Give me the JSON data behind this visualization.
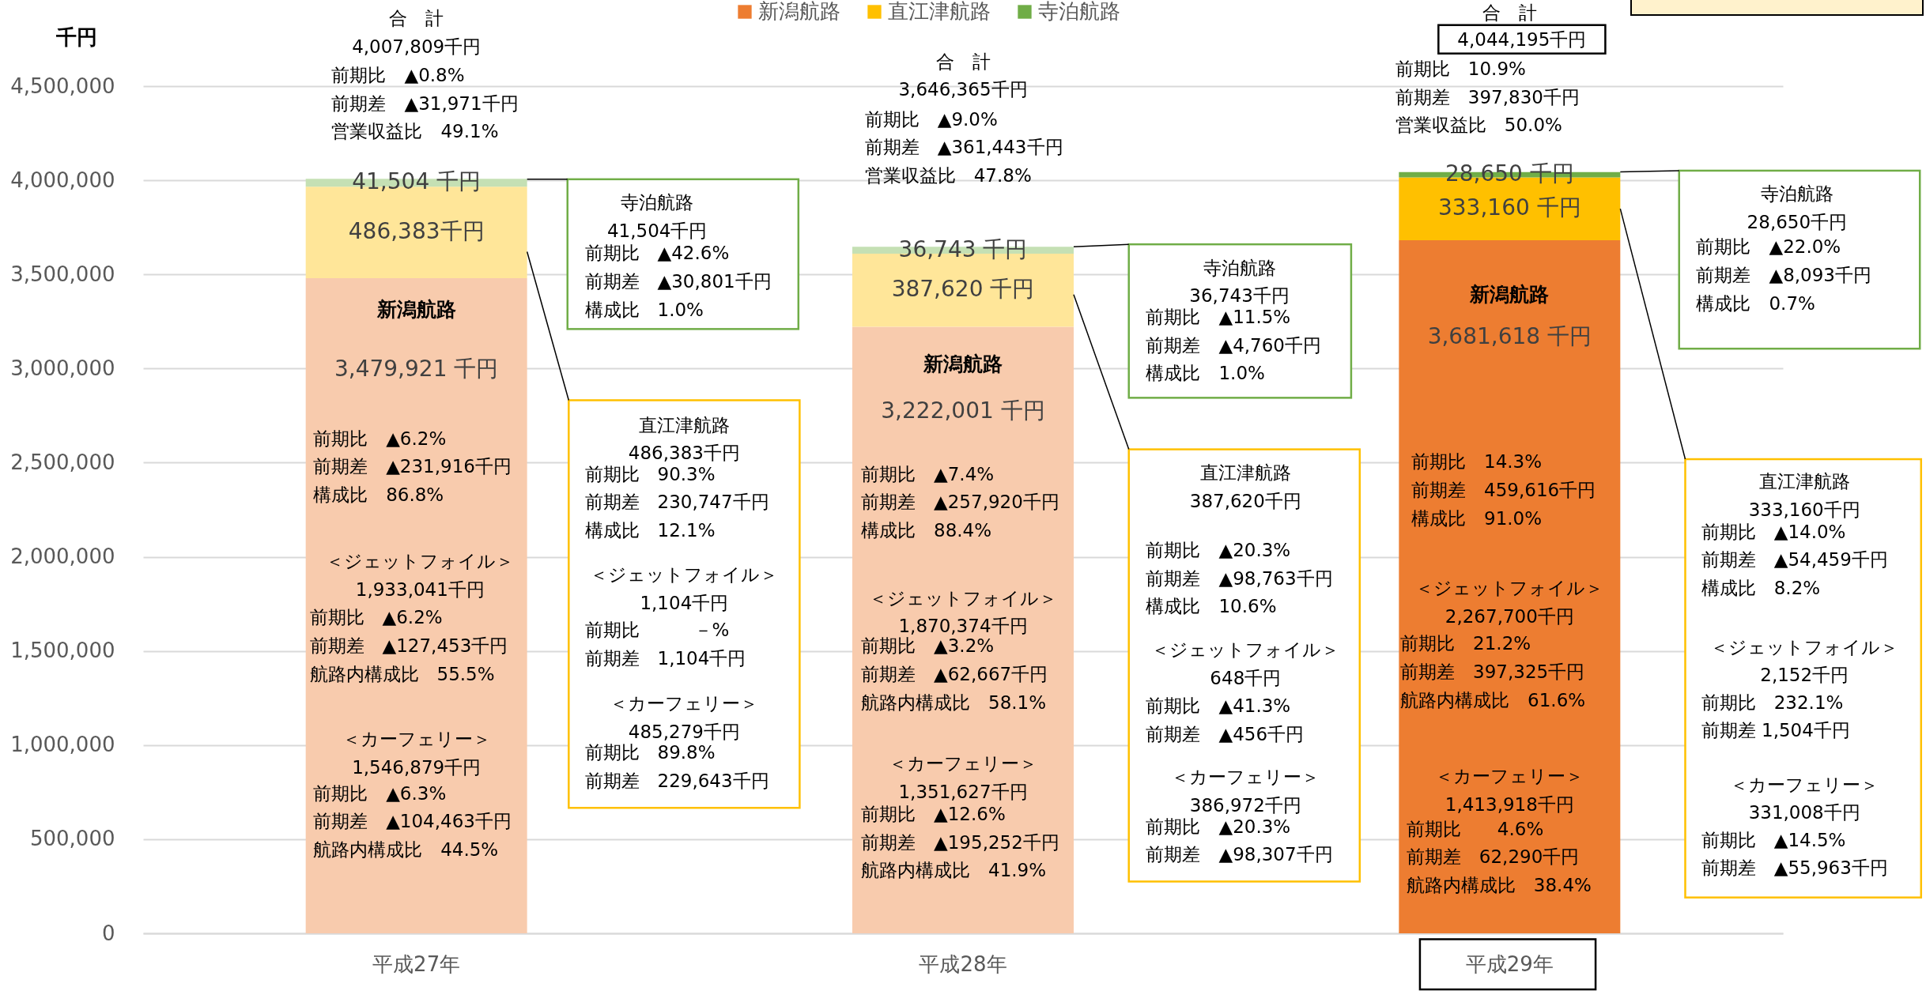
{
  "chart_data": {
    "type": "bar",
    "stacked": true,
    "ylabel": "千円",
    "categories": [
      "平成27年",
      "平成28年",
      "平成29年"
    ],
    "ylim": [
      0,
      4500000
    ],
    "yticks": [
      {
        "value": 0,
        "label": "0"
      },
      {
        "value": 500000,
        "label": "500,000"
      },
      {
        "value": 1000000,
        "label": "1,000,000"
      },
      {
        "value": 1500000,
        "label": "1,500,000"
      },
      {
        "value": 2000000,
        "label": "2,000,000"
      },
      {
        "value": 2500000,
        "label": "2,500,000"
      },
      {
        "value": 3000000,
        "label": "3,000,000"
      },
      {
        "value": 3500000,
        "label": "3,500,000"
      },
      {
        "value": 4000000,
        "label": "4,000,000"
      },
      {
        "value": 4500000,
        "label": "4,500,000"
      }
    ],
    "grid": "y",
    "legend": "top",
    "series": [
      {
        "name": "新潟航路",
        "color": "#ed7d31",
        "colors": [
          "#f8cbad",
          "#f8cbad",
          "#ed7d31"
        ],
        "values": [
          3479921,
          3222001,
          3681618
        ],
        "value_labels": [
          "3,479,921 千円",
          "3,222,001 千円",
          "3,681,618 千円"
        ]
      },
      {
        "name": "直江津航路",
        "color": "#ffc000",
        "colors": [
          "#ffe699",
          "#ffe699",
          "#ffc000"
        ],
        "values": [
          486383,
          387620,
          333160
        ],
        "value_labels": [
          "486,383千円",
          "387,620 千円",
          "333,160 千円"
        ]
      },
      {
        "name": "寺泊航路",
        "color": "#70ad47",
        "colors": [
          "#c5e0b4",
          "#c5e0b4",
          "#70ad47"
        ],
        "values": [
          41504,
          36743,
          28650
        ],
        "value_labels": [
          "41,504 千円",
          "36,743 千円",
          "28,650 千円"
        ]
      }
    ],
    "annotations": [
      "合　計",
      "4,007,809千円",
      "前期比　▲0.8%",
      "前期差　▲31,971千円",
      "営業収益比　49.1%",
      "新潟航路",
      "前期比　▲6.2%",
      "前期差　▲231,916千円",
      "構成比　86.8%",
      "＜ジェットフォイル＞",
      "1,933,041千円",
      "前期比　▲6.2%",
      "前期差　▲127,453千円",
      "航路内構成比　55.5%",
      "＜カーフェリー＞",
      "1,546,879千円",
      "前期比　▲6.3%",
      "前期差　▲104,463千円",
      "航路内構成比　44.5%",
      "寺泊航路",
      "41,504千円",
      "前期比　▲42.6%",
      "前期差　▲30,801千円",
      "構成比　1.0%",
      "直江津航路",
      "486,383千円",
      "前期比　90.3%",
      "前期差　230,747千円",
      "構成比　12.1%",
      "＜ジェットフォイル＞",
      "1,104千円",
      "前期比　　　－%",
      "前期差　1,104千円",
      "＜カーフェリー＞",
      "485,279千円",
      "前期比　89.8%",
      "前期差　229,643千円",
      "合　計",
      "3,646,365千円",
      "前期比　▲9.0%",
      "前期差　▲361,443千円",
      "営業収益比　47.8%",
      "新潟航路",
      "前期比　▲7.4%",
      "前期差　▲257,920千円",
      "構成比　88.4%",
      "＜ジェットフォイル＞",
      "1,870,374千円",
      "前期比　▲3.2%",
      "前期差　▲62,667千円",
      "航路内構成比　58.1%",
      "＜カーフェリー＞",
      "1,351,627千円",
      "前期比　▲12.6%",
      "前期差　▲195,252千円",
      "航路内構成比　41.9%",
      "寺泊航路",
      "36,743千円",
      "前期比　▲11.5%",
      "前期差　▲4,760千円",
      "構成比　1.0%",
      "直江津航路",
      "387,620千円",
      "前期比　▲20.3%",
      "前期差　▲98,763千円",
      "構成比　10.6%",
      "＜ジェットフォイル＞",
      "648千円",
      "前期比　▲41.3%",
      "前期差　▲456千円",
      "＜カーフェリー＞",
      "386,972千円",
      "前期比　▲20.3%",
      "前期差　▲98,307千円",
      "合　計",
      "4,044,195千円",
      "前期比　10.9%",
      "前期差　397,830千円",
      "営業収益比　50.0%",
      "新潟航路",
      "前期比　14.3%",
      "前期差　459,616千円",
      "構成比　91.0%",
      "＜ジェットフォイル＞",
      "2,267,700千円",
      "前期比　21.2%",
      "前期差　397,325千円",
      "航路内構成比　61.6%",
      "＜カーフェリー＞",
      "1,413,918千円",
      "前期比　　4.6%",
      "前期差　62,290千円",
      "航路内構成比　38.4%",
      "寺泊航路",
      "28,650千円",
      "前期比　▲22.0%",
      "前期差　▲8,093千円",
      "構成比　0.7%",
      "直江津航路",
      "333,160千円",
      "前期比　▲14.0%",
      "前期差　▲54,459千円",
      "構成比　8.2%",
      "＜ジェットフォイル＞",
      "2,152千円",
      "前期比　232.1%",
      "前期差 1,504千円",
      "＜カーフェリー＞",
      "331,008千円",
      "前期比　▲14.5%",
      "前期差　▲55,963千円"
    ]
  }
}
